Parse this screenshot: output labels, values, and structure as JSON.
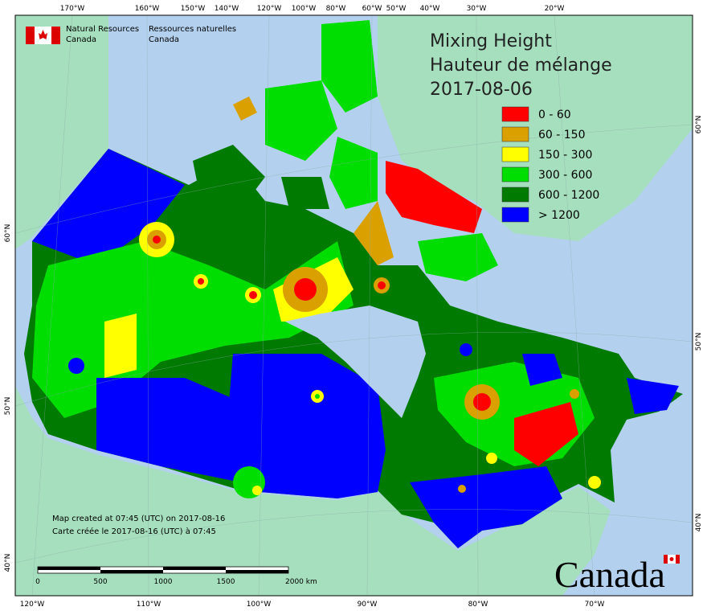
{
  "agency": {
    "en": [
      "Natural Resources",
      "Canada"
    ],
    "fr": [
      "Ressources naturelles",
      "Canada"
    ]
  },
  "title": [
    "Mixing Height",
    "Hauteur de mélange",
    "2017-08-06"
  ],
  "legend": [
    {
      "label": "0 - 60",
      "color": "#ff0000"
    },
    {
      "label": "60 - 150",
      "color": "#d9a000"
    },
    {
      "label": "150 - 300",
      "color": "#ffff00"
    },
    {
      "label": "300 - 600",
      "color": "#00dd00"
    },
    {
      "label": "600 - 1200",
      "color": "#007a00"
    },
    {
      "label": "> 1200",
      "color": "#0000ff"
    }
  ],
  "graticule": {
    "top": [
      "170°W",
      "160°W",
      "150°W",
      "140°W",
      "120°W",
      "100°W",
      "80°W",
      "60°W",
      "50°W",
      "40°W",
      "30°W",
      "20°W"
    ],
    "bottom": [
      "120°W",
      "110°W",
      "100°W",
      "90°W",
      "80°W",
      "70°W"
    ],
    "left": [
      "60°N",
      "50°N",
      "40°N"
    ],
    "right": [
      "60°N",
      "50°N",
      "40°N"
    ]
  },
  "scale_bar": [
    "0",
    "500",
    "1000",
    "1500",
    "2000 km"
  ],
  "credits": [
    "Map created at 07:45 (UTC) on 2017-08-16",
    "Carte créée le 2017-08-16 (UTC) à 07:45"
  ],
  "wordmark": "Canada"
}
